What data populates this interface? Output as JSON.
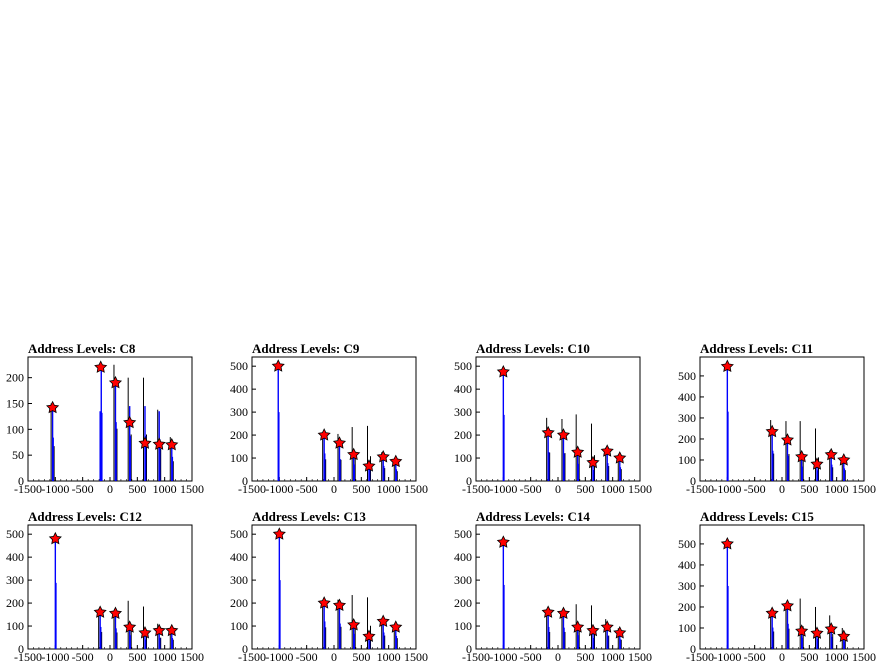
{
  "chart_data": [
    {
      "type": "histogram",
      "title": "Address Levels: C8",
      "xlim": [
        -1500,
        1500
      ],
      "ylim": [
        0,
        240
      ],
      "xticks": [
        -1500,
        -1000,
        -500,
        0,
        500,
        1000,
        1500
      ],
      "xtick_labels": [
        "-1500",
        "-1000",
        "-500",
        "0",
        "500",
        "1000",
        "1500"
      ],
      "yticks": [
        0,
        50,
        100,
        150,
        200
      ],
      "spikes": [
        {
          "x": -1050,
          "black": 150,
          "blue": 140
        },
        {
          "x": -180,
          "black": 0,
          "blue": 135
        },
        {
          "x": -160,
          "black": 0,
          "blue": 220
        },
        {
          "x": 100,
          "black": 225,
          "blue": 190
        },
        {
          "x": 360,
          "black": 200,
          "blue": 145
        },
        {
          "x": 640,
          "black": 200,
          "blue": 145
        },
        {
          "x": 900,
          "black": 138,
          "blue": 135
        },
        {
          "x": 1130,
          "black": 85,
          "blue": 78
        }
      ],
      "peaks": [
        {
          "x": -1050,
          "y": 142
        },
        {
          "x": -170,
          "y": 220
        },
        {
          "x": 100,
          "y": 190
        },
        {
          "x": 360,
          "y": 113
        },
        {
          "x": 640,
          "y": 73
        },
        {
          "x": 900,
          "y": 71
        },
        {
          "x": 1130,
          "y": 70
        }
      ]
    },
    {
      "type": "histogram",
      "title": "Address Levels: C9",
      "xlim": [
        -1500,
        1500
      ],
      "ylim": [
        0,
        540
      ],
      "xticks": [
        -1500,
        -1000,
        -500,
        0,
        500,
        1000,
        1500
      ],
      "xtick_labels": [
        "-1500",
        "-1000",
        "-500",
        "0",
        "500",
        "1000",
        "1500"
      ],
      "yticks": [
        0,
        100,
        200,
        300,
        400,
        500
      ],
      "spikes": [
        {
          "x": -1020,
          "black": 0,
          "blue": 500
        },
        {
          "x": -180,
          "black": 210,
          "blue": 200
        },
        {
          "x": 100,
          "black": 205,
          "blue": 160
        },
        {
          "x": 360,
          "black": 235,
          "blue": 120
        },
        {
          "x": 640,
          "black": 240,
          "blue": 90
        },
        {
          "x": 900,
          "black": 125,
          "blue": 110
        },
        {
          "x": 1130,
          "black": 95,
          "blue": 85
        }
      ],
      "peaks": [
        {
          "x": -1020,
          "y": 500
        },
        {
          "x": -180,
          "y": 200
        },
        {
          "x": 100,
          "y": 165
        },
        {
          "x": 360,
          "y": 115
        },
        {
          "x": 640,
          "y": 65
        },
        {
          "x": 900,
          "y": 105
        },
        {
          "x": 1130,
          "y": 85
        }
      ]
    },
    {
      "type": "histogram",
      "title": "Address Levels: C10",
      "xlim": [
        -1500,
        1500
      ],
      "ylim": [
        0,
        540
      ],
      "xticks": [
        -1500,
        -1000,
        -500,
        0,
        500,
        1000,
        1500
      ],
      "xtick_labels": [
        "-1500",
        "-1000",
        "-500",
        "0",
        "500",
        "1000",
        "1500"
      ],
      "yticks": [
        0,
        100,
        200,
        300,
        400,
        500
      ],
      "spikes": [
        {
          "x": -1000,
          "black": 0,
          "blue": 480
        },
        {
          "x": -180,
          "black": 275,
          "blue": 210
        },
        {
          "x": 100,
          "black": 270,
          "blue": 200
        },
        {
          "x": 360,
          "black": 290,
          "blue": 125
        },
        {
          "x": 640,
          "black": 250,
          "blue": 80
        },
        {
          "x": 900,
          "black": 145,
          "blue": 130
        },
        {
          "x": 1130,
          "black": 115,
          "blue": 100
        }
      ],
      "peaks": [
        {
          "x": -1000,
          "y": 475
        },
        {
          "x": -180,
          "y": 210
        },
        {
          "x": 100,
          "y": 200
        },
        {
          "x": 360,
          "y": 125
        },
        {
          "x": 640,
          "y": 80
        },
        {
          "x": 900,
          "y": 130
        },
        {
          "x": 1130,
          "y": 100
        }
      ]
    },
    {
      "type": "histogram",
      "title": "Address Levels: C11",
      "xlim": [
        -1500,
        1500
      ],
      "ylim": [
        0,
        590
      ],
      "xticks": [
        -1500,
        -1000,
        -500,
        0,
        500,
        1000,
        1500
      ],
      "xtick_labels": [
        "-1500",
        "-1000",
        "-500",
        "0",
        "500",
        "1000",
        "1500"
      ],
      "yticks": [
        0,
        100,
        200,
        300,
        400,
        500
      ],
      "spikes": [
        {
          "x": -1000,
          "black": 0,
          "blue": 550
        },
        {
          "x": -180,
          "black": 290,
          "blue": 240
        },
        {
          "x": 100,
          "black": 285,
          "blue": 200
        },
        {
          "x": 360,
          "black": 285,
          "blue": 115
        },
        {
          "x": 640,
          "black": 250,
          "blue": 85
        },
        {
          "x": 900,
          "black": 145,
          "blue": 130
        },
        {
          "x": 1130,
          "black": 115,
          "blue": 100
        }
      ],
      "peaks": [
        {
          "x": -1000,
          "y": 545
        },
        {
          "x": -180,
          "y": 235
        },
        {
          "x": 100,
          "y": 195
        },
        {
          "x": 360,
          "y": 115
        },
        {
          "x": 640,
          "y": 80
        },
        {
          "x": 900,
          "y": 125
        },
        {
          "x": 1130,
          "y": 100
        }
      ]
    },
    {
      "type": "histogram",
      "title": "Address Levels: C12",
      "xlim": [
        -1500,
        1500
      ],
      "ylim": [
        0,
        540
      ],
      "xticks": [
        -1500,
        -1000,
        -500,
        0,
        500,
        1000,
        1500
      ],
      "xtick_labels": [
        "-1500",
        "-1000",
        "-500",
        "0",
        "500",
        "1000",
        "1500"
      ],
      "yticks": [
        0,
        100,
        200,
        300,
        400,
        500
      ],
      "spikes": [
        {
          "x": -1000,
          "black": 0,
          "blue": 480
        },
        {
          "x": -180,
          "black": 165,
          "blue": 160
        },
        {
          "x": 100,
          "black": 160,
          "blue": 150
        },
        {
          "x": 360,
          "black": 210,
          "blue": 100
        },
        {
          "x": 640,
          "black": 185,
          "blue": 70
        },
        {
          "x": 900,
          "black": 110,
          "blue": 80
        },
        {
          "x": 1130,
          "black": 90,
          "blue": 80
        }
      ],
      "peaks": [
        {
          "x": -1000,
          "y": 480
        },
        {
          "x": -180,
          "y": 160
        },
        {
          "x": 100,
          "y": 155
        },
        {
          "x": 360,
          "y": 95
        },
        {
          "x": 640,
          "y": 70
        },
        {
          "x": 900,
          "y": 80
        },
        {
          "x": 1130,
          "y": 80
        }
      ]
    },
    {
      "type": "histogram",
      "title": "Address Levels: C13",
      "xlim": [
        -1500,
        1500
      ],
      "ylim": [
        0,
        540
      ],
      "xticks": [
        -1500,
        -1000,
        -500,
        0,
        500,
        1000,
        1500
      ],
      "xtick_labels": [
        "-1500",
        "-1000",
        "-500",
        "0",
        "500",
        "1000",
        "1500"
      ],
      "yticks": [
        0,
        100,
        200,
        300,
        400,
        500
      ],
      "spikes": [
        {
          "x": -1000,
          "black": 0,
          "blue": 500
        },
        {
          "x": -180,
          "black": 210,
          "blue": 200
        },
        {
          "x": 100,
          "black": 215,
          "blue": 185
        },
        {
          "x": 360,
          "black": 235,
          "blue": 110
        },
        {
          "x": 640,
          "black": 225,
          "blue": 60
        },
        {
          "x": 900,
          "black": 130,
          "blue": 120
        },
        {
          "x": 1130,
          "black": 105,
          "blue": 95
        }
      ],
      "peaks": [
        {
          "x": -1000,
          "y": 500
        },
        {
          "x": -180,
          "y": 200
        },
        {
          "x": 100,
          "y": 190
        },
        {
          "x": 360,
          "y": 105
        },
        {
          "x": 640,
          "y": 55
        },
        {
          "x": 900,
          "y": 120
        },
        {
          "x": 1130,
          "y": 95
        }
      ]
    },
    {
      "type": "histogram",
      "title": "Address Levels: C14",
      "xlim": [
        -1500,
        1500
      ],
      "ylim": [
        0,
        540
      ],
      "xticks": [
        -1500,
        -1000,
        -500,
        0,
        500,
        1000,
        1500
      ],
      "xtick_labels": [
        "-1500",
        "-1000",
        "-500",
        "0",
        "500",
        "1000",
        "1500"
      ],
      "yticks": [
        0,
        100,
        200,
        300,
        400,
        500
      ],
      "spikes": [
        {
          "x": -1000,
          "black": 0,
          "blue": 465
        },
        {
          "x": -180,
          "black": 165,
          "blue": 160
        },
        {
          "x": 100,
          "black": 165,
          "blue": 155
        },
        {
          "x": 360,
          "black": 195,
          "blue": 100
        },
        {
          "x": 640,
          "black": 190,
          "blue": 80
        },
        {
          "x": 900,
          "black": 130,
          "blue": 95
        },
        {
          "x": 1130,
          "black": 90,
          "blue": 70
        }
      ],
      "peaks": [
        {
          "x": -1000,
          "y": 465
        },
        {
          "x": -180,
          "y": 160
        },
        {
          "x": 100,
          "y": 155
        },
        {
          "x": 360,
          "y": 95
        },
        {
          "x": 640,
          "y": 80
        },
        {
          "x": 900,
          "y": 95
        },
        {
          "x": 1130,
          "y": 70
        }
      ]
    },
    {
      "type": "histogram",
      "title": "Address Levels: C15",
      "xlim": [
        -1500,
        1500
      ],
      "ylim": [
        0,
        590
      ],
      "xticks": [
        -1500,
        -1000,
        -500,
        0,
        500,
        1000,
        1500
      ],
      "xtick_labels": [
        "-1500",
        "-1000",
        "-500",
        "0",
        "500",
        "1000",
        "1500"
      ],
      "yticks": [
        0,
        100,
        200,
        300,
        400,
        500
      ],
      "spikes": [
        {
          "x": -1000,
          "black": 0,
          "blue": 500
        },
        {
          "x": -180,
          "black": 185,
          "blue": 170
        },
        {
          "x": 100,
          "black": 215,
          "blue": 200
        },
        {
          "x": 360,
          "black": 240,
          "blue": 90
        },
        {
          "x": 640,
          "black": 200,
          "blue": 80
        },
        {
          "x": 900,
          "black": 160,
          "blue": 95
        },
        {
          "x": 1130,
          "black": 100,
          "blue": 60
        }
      ],
      "peaks": [
        {
          "x": -1000,
          "y": 500
        },
        {
          "x": -180,
          "y": 170
        },
        {
          "x": 100,
          "y": 205
        },
        {
          "x": 360,
          "y": 85
        },
        {
          "x": 640,
          "y": 75
        },
        {
          "x": 900,
          "y": 95
        },
        {
          "x": 1130,
          "y": 60
        }
      ]
    }
  ],
  "colors": {
    "axis": "#000000",
    "primary_histogram": "#000000",
    "secondary_histogram": "#0000ff",
    "peak_marker": "#ff0000"
  }
}
